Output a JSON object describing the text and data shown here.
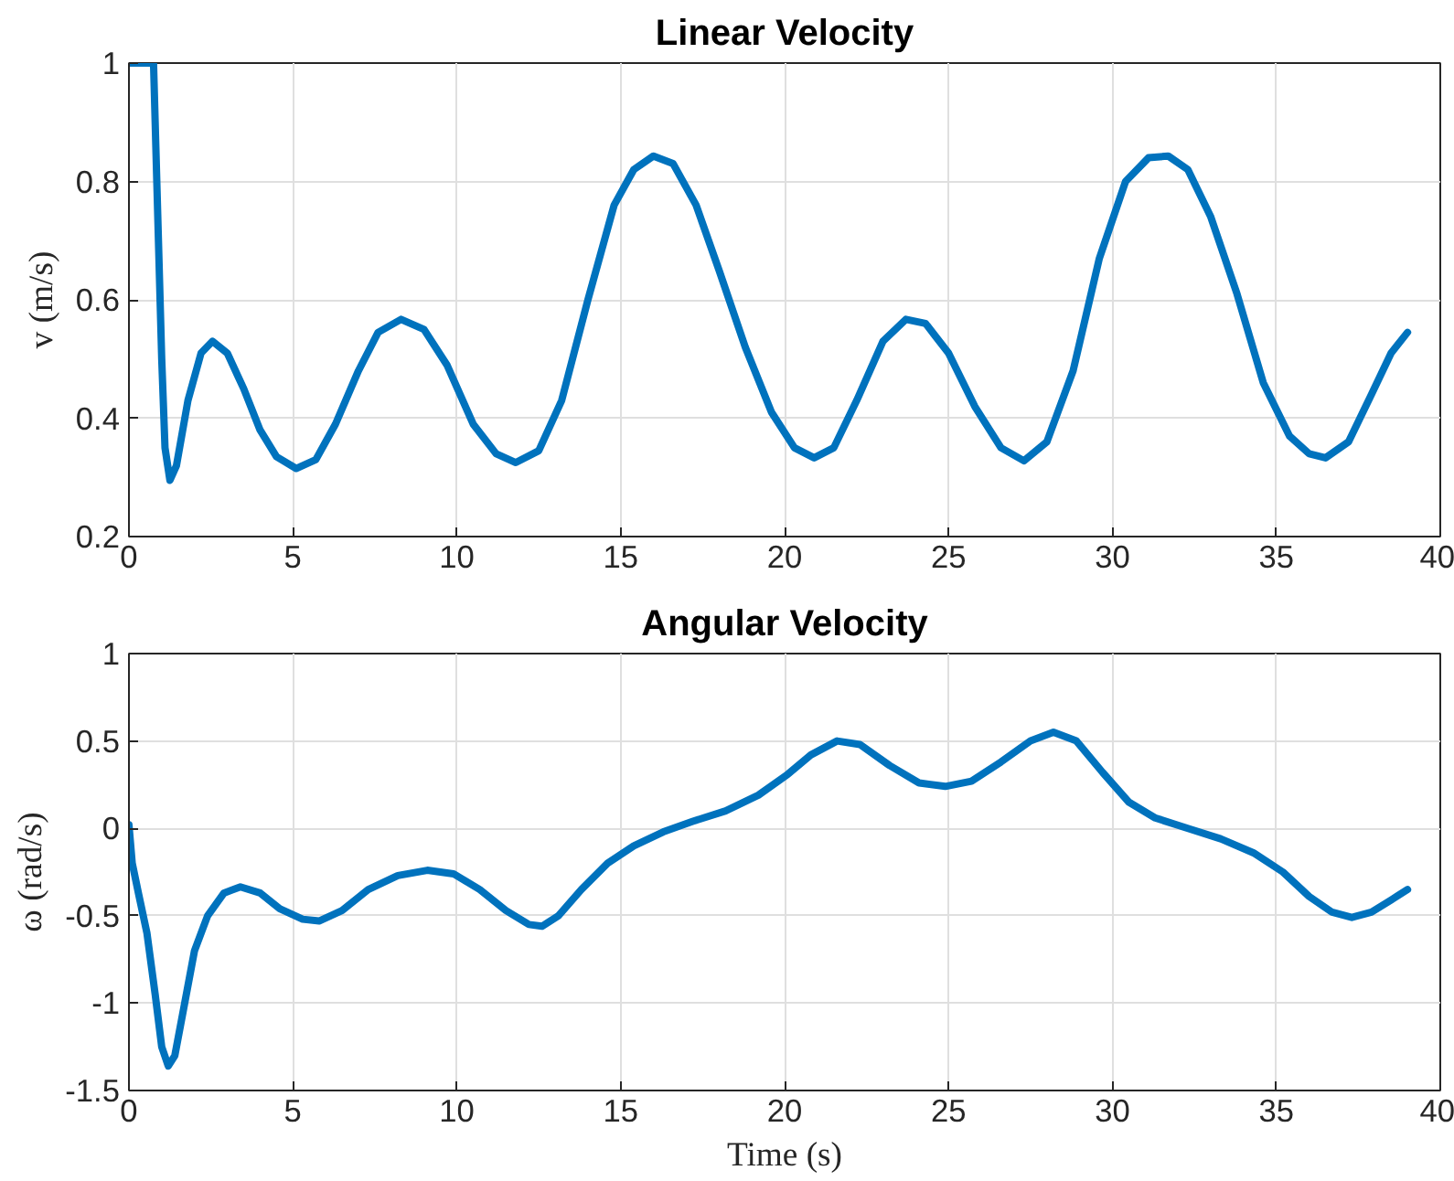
{
  "chart_data": [
    {
      "type": "line",
      "title": "Linear Velocity",
      "ylabel": "v (m/s)",
      "xlim": [
        0,
        40
      ],
      "ylim": [
        0.2,
        1
      ],
      "xticks": [
        0,
        5,
        10,
        15,
        20,
        25,
        30,
        35,
        40
      ],
      "yticks": [
        0.2,
        0.4,
        0.6,
        0.8,
        1
      ],
      "grid": true,
      "series": [
        {
          "color": "#0072bd",
          "x": [
            0,
            0.25,
            0.5,
            0.75,
            0.85,
            1.0,
            1.1,
            1.25,
            1.45,
            1.8,
            2.2,
            2.55,
            3,
            3.5,
            4,
            4.5,
            5.1,
            5.7,
            6.3,
            7,
            7.6,
            8.3,
            9,
            9.7,
            10.5,
            11.2,
            11.8,
            12.5,
            13.2,
            14,
            14.8,
            15.4,
            16,
            16.6,
            17.3,
            18,
            18.8,
            19.6,
            20.3,
            20.9,
            21.5,
            22.2,
            23,
            23.7,
            24.3,
            25,
            25.8,
            26.6,
            27.3,
            28,
            28.8,
            29.6,
            30.4,
            31.1,
            31.7,
            32.3,
            33,
            33.8,
            34.6,
            35.4,
            36,
            36.5,
            37.2,
            37.9,
            38.5,
            39
          ],
          "values": [
            1,
            1,
            1,
            1,
            0.8,
            0.5,
            0.35,
            0.295,
            0.32,
            0.43,
            0.51,
            0.53,
            0.51,
            0.45,
            0.38,
            0.335,
            0.315,
            0.33,
            0.39,
            0.48,
            0.545,
            0.567,
            0.55,
            0.49,
            0.39,
            0.34,
            0.325,
            0.345,
            0.43,
            0.6,
            0.76,
            0.82,
            0.843,
            0.83,
            0.76,
            0.65,
            0.52,
            0.41,
            0.35,
            0.333,
            0.35,
            0.43,
            0.53,
            0.567,
            0.56,
            0.51,
            0.42,
            0.35,
            0.328,
            0.36,
            0.48,
            0.67,
            0.8,
            0.84,
            0.843,
            0.82,
            0.74,
            0.61,
            0.46,
            0.37,
            0.34,
            0.333,
            0.36,
            0.44,
            0.51,
            0.545
          ]
        }
      ]
    },
    {
      "type": "line",
      "title": "Angular Velocity",
      "xlabel": "Time (s)",
      "ylabel": "ω (rad/s)",
      "xlim": [
        0,
        40
      ],
      "ylim": [
        -1.5,
        1
      ],
      "xticks": [
        0,
        5,
        10,
        15,
        20,
        25,
        30,
        35,
        40
      ],
      "yticks": [
        -1.5,
        -1,
        -0.5,
        0,
        0.5,
        1
      ],
      "grid": true,
      "series": [
        {
          "color": "#0072bd",
          "x": [
            0,
            0.1,
            0.3,
            0.55,
            0.8,
            1.0,
            1.2,
            1.4,
            1.7,
            2.0,
            2.4,
            2.9,
            3.4,
            4,
            4.6,
            5.3,
            5.8,
            6.5,
            7.3,
            8.2,
            9.1,
            9.9,
            10.7,
            11.5,
            12.2,
            12.6,
            13.1,
            13.8,
            14.6,
            15.4,
            16.3,
            17.2,
            18.2,
            19.2,
            20.1,
            20.8,
            21.6,
            22.3,
            23.2,
            24.1,
            24.9,
            25.7,
            26.6,
            27.5,
            28.2,
            28.9,
            29.7,
            30.5,
            31.3,
            32.3,
            33.3,
            34.3,
            35.2,
            36,
            36.7,
            37.3,
            37.9,
            38.5,
            39
          ],
          "values": [
            0.02,
            -0.2,
            -0.38,
            -0.6,
            -0.95,
            -1.25,
            -1.36,
            -1.3,
            -1.0,
            -0.7,
            -0.5,
            -0.37,
            -0.335,
            -0.37,
            -0.46,
            -0.52,
            -0.53,
            -0.47,
            -0.35,
            -0.27,
            -0.24,
            -0.26,
            -0.35,
            -0.47,
            -0.55,
            -0.56,
            -0.5,
            -0.35,
            -0.2,
            -0.1,
            -0.02,
            0.04,
            0.1,
            0.19,
            0.31,
            0.42,
            0.5,
            0.48,
            0.36,
            0.26,
            0.24,
            0.27,
            0.38,
            0.5,
            0.55,
            0.5,
            0.32,
            0.15,
            0.06,
            0.0,
            -0.06,
            -0.14,
            -0.25,
            -0.39,
            -0.48,
            -0.51,
            -0.48,
            -0.41,
            -0.35
          ]
        }
      ]
    }
  ]
}
